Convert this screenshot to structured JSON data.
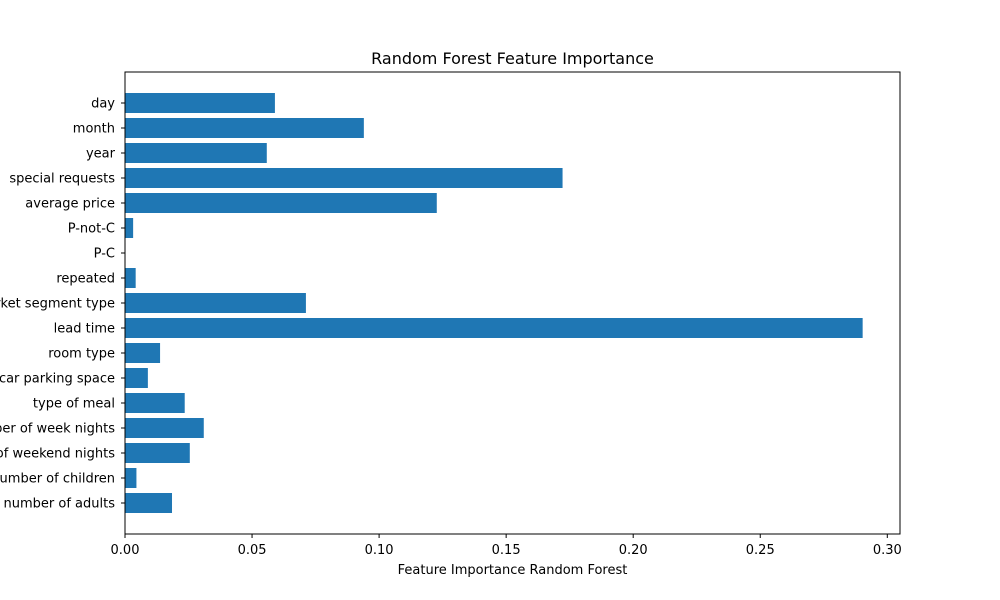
{
  "chart_data": {
    "type": "bar",
    "orientation": "horizontal",
    "title": "Random Forest Feature Importance",
    "xlabel": "Feature Importance Random Forest",
    "ylabel": "",
    "xlim": [
      0,
      0.305
    ],
    "xticks": [
      0.0,
      0.05,
      0.1,
      0.15,
      0.2,
      0.25,
      0.3
    ],
    "xtick_labels": [
      "0.00",
      "0.05",
      "0.10",
      "0.15",
      "0.20",
      "0.25",
      "0.30"
    ],
    "grid": false,
    "bar_color": "#1f77b4",
    "categories": [
      "number of adults",
      "number of children",
      "number of weekend nights",
      "number of week nights",
      "type of meal",
      "car parking space",
      "room type",
      "lead time",
      "market segment type",
      "repeated",
      "P-C",
      "P-not-C",
      "average price",
      "special requests",
      "year",
      "month",
      "day"
    ],
    "values": [
      0.0185,
      0.0045,
      0.0255,
      0.031,
      0.0235,
      0.009,
      0.0138,
      0.2903,
      0.0712,
      0.0042,
      0.0002,
      0.0032,
      0.1227,
      0.1722,
      0.0558,
      0.094,
      0.059
    ]
  }
}
